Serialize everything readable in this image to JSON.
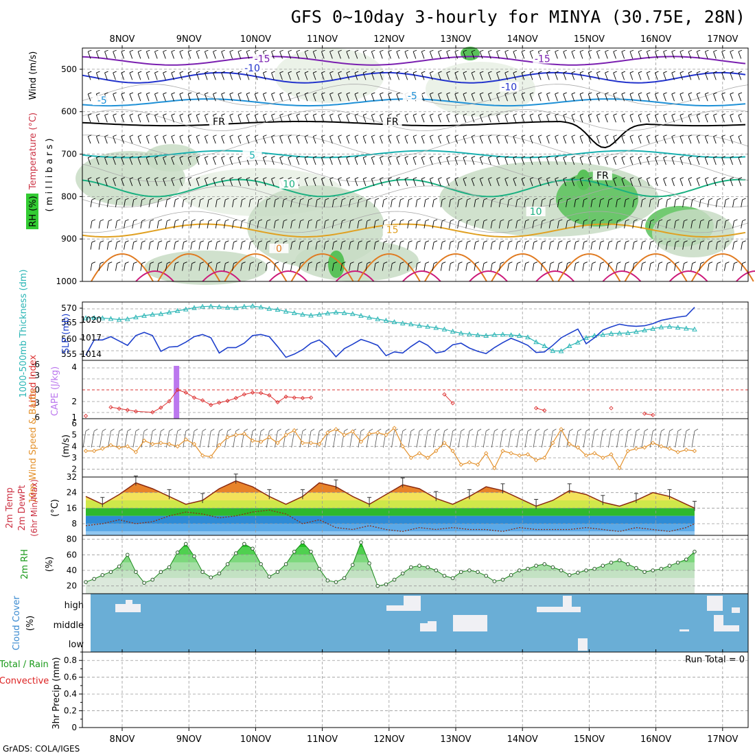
{
  "header": {
    "title": "GFS 0~10day 3-hourly for MINYA (30.75E, 28N)",
    "credit": "GrADS: COLA/IGES"
  },
  "colors": {
    "panel_bg": "#ffffff",
    "cloud_bg": "#6aaed6",
    "grid": "#999999",
    "rh_shade_light": "#e8f0e4",
    "rh_shade_mid": "#c8dcc4",
    "rh_shade_green": "#59c159",
    "thickness": "#29b5b5",
    "slp": "#1d3fcc",
    "lifted": "#dd3333",
    "cape": "#bb77ee",
    "wind10": "#e3902a",
    "tmax": "#8b2a10",
    "dewpt": "#8b2a10",
    "rh2m_line": "#1a8a1a"
  },
  "chart_data": [
    {
      "id": "sounding",
      "type": "heatmap",
      "x_dates": [
        "8NOV",
        "9NOV",
        "10NOV",
        "11NOV",
        "12NOV",
        "13NOV",
        "14NOV",
        "15NOV",
        "16NOV",
        "17NOV"
      ],
      "y_ticks": [
        "500",
        "600",
        "700",
        "800",
        "900",
        "1000"
      ],
      "ylim": [
        1000,
        450
      ],
      "ylabel_parts": [
        "RH (%)",
        "Temperature (°C)",
        "Wind (m/s)"
      ],
      "ylabel_units": "( m i l l i b a r s )",
      "contour_labels": [
        {
          "text": "-15",
          "color": "#7a1fb0",
          "day": 2.1,
          "p": 480
        },
        {
          "text": "-15",
          "color": "#7a1fb0",
          "day": 6.3,
          "p": 480
        },
        {
          "text": "-10",
          "color": "#2233cc",
          "day": 1.95,
          "p": 502
        },
        {
          "text": "-10",
          "color": "#2233cc",
          "day": 5.8,
          "p": 546
        },
        {
          "text": "-5",
          "color": "#1e90d6",
          "day": -0.3,
          "p": 578
        },
        {
          "text": "-5",
          "color": "#1e90d6",
          "day": 4.35,
          "p": 567
        },
        {
          "text": "FR",
          "color": "#000000",
          "day": 1.45,
          "p": 628
        },
        {
          "text": "FR",
          "color": "#000000",
          "day": 4.05,
          "p": 628
        },
        {
          "text": "FR",
          "color": "#000000",
          "day": 7.2,
          "p": 755
        },
        {
          "text": "5",
          "color": "#18b0b0",
          "day": 1.95,
          "p": 707
        },
        {
          "text": "10",
          "color": "#19b080",
          "day": 2.5,
          "p": 775
        },
        {
          "text": "10",
          "color": "#19b080",
          "day": 6.2,
          "p": 840
        },
        {
          "text": "15",
          "color": "#e0a020",
          "day": 4.05,
          "p": 883
        },
        {
          "text": "0",
          "color": "#e07a20",
          "day": 2.35,
          "p": 927
        }
      ]
    },
    {
      "id": "thickness_slp",
      "type": "line",
      "left_label": "1000-500mb Thickness (dm)",
      "right_label": "SLP (mb)",
      "left_ticks": [
        "570",
        "565",
        "560",
        "555"
      ],
      "right_ticks": [
        "1020",
        "1017",
        "1014"
      ],
      "x": [
        0,
        0.125,
        0.25,
        0.375,
        0.5,
        0.625,
        0.75,
        0.875,
        1,
        1.125,
        1.25,
        1.375,
        1.5,
        1.625,
        1.75,
        1.875,
        2,
        2.125,
        2.25,
        2.375,
        2.5,
        2.625,
        2.75,
        2.875,
        3,
        3.125,
        3.25,
        3.375,
        3.5,
        3.625,
        3.75,
        3.875,
        4,
        4.125,
        4.25,
        4.375,
        4.5,
        4.625,
        4.75,
        4.875,
        5,
        5.125,
        5.25,
        5.375,
        5.5,
        5.625,
        5.75,
        5.875,
        6,
        6.125,
        6.25,
        6.375,
        6.5,
        6.625,
        6.75,
        6.875,
        7,
        7.125,
        7.25,
        7.375,
        7.5,
        7.625,
        7.75,
        7.875,
        8,
        8.125,
        8.25,
        8.375,
        8.5,
        8.625,
        8.75,
        8.875,
        9,
        9.125
      ],
      "series": [
        {
          "name": "thickness",
          "values": [
            566.5,
            566.6,
            566.5,
            566.3,
            566.0,
            566.2,
            566.8,
            567.3,
            567.7,
            567.9,
            568.4,
            568.9,
            569.4,
            569.9,
            570.3,
            570.4,
            570.2,
            570.0,
            569.9,
            570.3,
            570.5,
            570.1,
            569.6,
            569.3,
            568.7,
            568.2,
            567.7,
            567.4,
            567.7,
            568.1,
            568.4,
            568.2,
            567.9,
            567.3,
            566.7,
            566.2,
            565.7,
            565.2,
            564.8,
            564.5,
            564.0,
            563.7,
            563.3,
            562.8,
            562.1,
            561.5,
            561.2,
            560.9,
            560.7,
            561.0,
            561.1,
            560.9,
            560.7,
            560.2,
            558.6,
            557.3,
            555.7,
            555.6,
            557.3,
            558.5,
            560.0,
            560.7,
            561.0,
            561.4,
            561.5,
            561.6,
            562.0,
            562.5,
            563.0,
            563.5,
            563.7,
            563.4,
            563.1,
            562.8
          ]
        },
        {
          "name": "slp",
          "values": [
            1014.0,
            1016.8,
            1016.8,
            1017.4,
            1016.6,
            1015.8,
            1017.6,
            1018.2,
            1017.6,
            1014.7,
            1015.5,
            1015.6,
            1016.4,
            1017.4,
            1017.8,
            1017.2,
            1014.4,
            1015.4,
            1015.4,
            1016.2,
            1017.6,
            1017.8,
            1017.4,
            1015.6,
            1013.6,
            1014.2,
            1015.0,
            1016.2,
            1016.8,
            1015.5,
            1013.7,
            1015.2,
            1016.0,
            1016.9,
            1016.4,
            1015.8,
            1013.9,
            1014.6,
            1014.4,
            1015.6,
            1016.6,
            1015.8,
            1014.4,
            1014.7,
            1015.9,
            1016.2,
            1015.3,
            1014.7,
            1014.3,
            1015.4,
            1016.3,
            1017.1,
            1016.5,
            1015.8,
            1014.5,
            1014.6,
            1015.8,
            1017.2,
            1018.0,
            1018.8,
            1016.1,
            1017.2,
            1018.6,
            1019.2,
            1019.7,
            1019.4,
            1019.3,
            1019.4,
            1019.8,
            1020.4,
            1020.7,
            1021.0,
            1021.2,
            1022.8
          ]
        }
      ]
    },
    {
      "id": "lifted_cape",
      "type": "line",
      "left_label": "Lifted Index",
      "right_label": "CAPE (J/kg)",
      "left_ticks": [
        "-6",
        "-3",
        "0",
        "3",
        "6"
      ],
      "right_ticks": [
        "4",
        "2",
        "1"
      ],
      "x": [
        0,
        0.375,
        0.5,
        0.625,
        0.75,
        1.0,
        1.125,
        1.25,
        1.375,
        1.5,
        1.625,
        1.75,
        1.875,
        2,
        2.125,
        2.25,
        2.375,
        2.5,
        2.625,
        2.75,
        2.875,
        3,
        3.125,
        3.25,
        3.375,
        5.375,
        5.5,
        6.75,
        6.875,
        7.875,
        8.375,
        8.5
      ],
      "series": [
        {
          "name": "lifted",
          "values": [
            5.7,
            3.8,
            4.1,
            4.4,
            4.7,
            4.9,
            3.9,
            2.5,
            0.0,
            0.6,
            1.7,
            2.3,
            3.3,
            2.8,
            2.4,
            1.8,
            1.0,
            0.6,
            0.7,
            1.2,
            2.7,
            1.5,
            1.7,
            1.8,
            1.7,
            1.0,
            2.9,
            4.0,
            4.5,
            4.0,
            5.2,
            5.5
          ]
        }
      ],
      "cape_bar": {
        "x": 1.38,
        "value": 4.0
      }
    },
    {
      "id": "wind10",
      "type": "line",
      "left_label": "10m Wind Speed & Barbs",
      "units": "(m/s)",
      "ticks": [
        "6",
        "5",
        "4",
        "3",
        "2"
      ],
      "x": [
        0,
        0.125,
        0.25,
        0.375,
        0.5,
        0.625,
        0.75,
        0.875,
        1,
        1.125,
        1.25,
        1.375,
        1.5,
        1.625,
        1.75,
        1.875,
        2,
        2.125,
        2.25,
        2.375,
        2.5,
        2.625,
        2.75,
        2.875,
        3,
        3.125,
        3.25,
        3.375,
        3.5,
        3.625,
        3.75,
        3.875,
        4,
        4.125,
        4.25,
        4.375,
        4.5,
        4.625,
        4.75,
        4.875,
        5,
        5.125,
        5.25,
        5.375,
        5.5,
        5.625,
        5.75,
        5.875,
        6,
        6.125,
        6.25,
        6.375,
        6.5,
        6.625,
        6.75,
        6.875,
        7,
        7.125,
        7.25,
        7.375,
        7.5,
        7.625,
        7.75,
        7.875,
        8,
        8.125,
        8.25,
        8.375,
        8.5,
        8.625,
        8.75,
        8.875,
        9,
        9.125
      ],
      "series": [
        {
          "name": "wind10",
          "values": [
            3.6,
            3.6,
            3.8,
            4.1,
            3.9,
            4.0,
            3.5,
            4.5,
            4.2,
            4.3,
            4.2,
            4.0,
            4.6,
            4.2,
            3.2,
            3.1,
            4.1,
            4.8,
            5.0,
            5.1,
            4.5,
            4.4,
            4.8,
            4.3,
            5.0,
            5.4,
            4.3,
            4.3,
            4.2,
            5.2,
            5.5,
            5.0,
            5.3,
            4.4,
            5.1,
            5.2,
            5.0,
            5.6,
            4.0,
            3.0,
            3.4,
            3.0,
            3.6,
            4.3,
            3.6,
            2.4,
            2.6,
            2.4,
            3.4,
            2.1,
            3.6,
            3.4,
            3.2,
            3.3,
            2.8,
            3.0,
            4.3,
            5.5,
            4.2,
            3.9,
            3.2,
            3.4,
            3.0,
            3.3,
            2.1,
            3.6,
            3.8,
            3.9,
            4.3,
            4.0,
            3.8,
            3.5,
            3.7,
            3.6
          ]
        }
      ]
    },
    {
      "id": "temp2m",
      "type": "area",
      "left_label": "2m Temp 2m DewPt (6hr Min/Max)",
      "units": "(°C)",
      "ticks": [
        "32",
        "24",
        "16",
        "8"
      ],
      "x": [
        0,
        0.25,
        0.5,
        0.75,
        1,
        1.25,
        1.5,
        1.75,
        2,
        2.25,
        2.5,
        2.75,
        3,
        3.25,
        3.5,
        3.75,
        4,
        4.25,
        4.5,
        4.75,
        5,
        5.25,
        5.5,
        5.75,
        6,
        6.25,
        6.5,
        6.75,
        7,
        7.25,
        7.5,
        7.75,
        8,
        8.25,
        8.5,
        8.75,
        9,
        9.125
      ],
      "series": [
        {
          "name": "temp",
          "values": [
            22,
            18,
            23,
            29,
            26,
            22,
            18,
            20,
            26,
            30,
            27,
            22,
            18,
            22,
            29,
            27,
            22,
            18,
            23,
            28,
            26,
            21,
            18,
            22,
            27,
            25,
            21,
            17,
            20,
            25,
            23,
            19,
            17,
            20,
            24,
            22,
            18,
            16
          ]
        },
        {
          "name": "dewpt",
          "values": [
            7,
            8,
            10,
            8,
            9,
            12,
            14,
            13,
            11,
            12,
            14,
            15,
            13,
            8,
            10,
            6,
            5,
            7,
            5,
            4,
            6,
            5,
            6,
            5,
            5,
            4,
            6,
            5,
            5,
            5,
            6,
            5,
            4,
            6,
            5,
            4,
            6,
            8
          ]
        }
      ]
    },
    {
      "id": "rh2m",
      "type": "area",
      "left_label": "2m RH",
      "units": "(%)",
      "ticks": [
        "80",
        "60",
        "40",
        "20"
      ],
      "x": [
        0,
        0.125,
        0.25,
        0.375,
        0.5,
        0.625,
        0.75,
        0.875,
        1,
        1.125,
        1.25,
        1.375,
        1.5,
        1.625,
        1.75,
        1.875,
        2,
        2.125,
        2.25,
        2.375,
        2.5,
        2.625,
        2.75,
        2.875,
        3,
        3.125,
        3.25,
        3.375,
        3.5,
        3.625,
        3.75,
        3.875,
        4,
        4.125,
        4.25,
        4.375,
        4.5,
        4.625,
        4.75,
        4.875,
        5,
        5.125,
        5.25,
        5.375,
        5.5,
        5.625,
        5.75,
        5.875,
        6,
        6.125,
        6.25,
        6.375,
        6.5,
        6.625,
        6.75,
        6.875,
        7,
        7.125,
        7.25,
        7.375,
        7.5,
        7.625,
        7.75,
        7.875,
        8,
        8.125,
        8.25,
        8.375,
        8.5,
        8.625,
        8.75,
        8.875,
        9,
        9.125
      ],
      "series": [
        {
          "name": "rh",
          "values": [
            25,
            29,
            34,
            38,
            45,
            60,
            38,
            24,
            28,
            38,
            44,
            63,
            74,
            58,
            38,
            31,
            36,
            48,
            62,
            74,
            68,
            48,
            32,
            38,
            48,
            64,
            76,
            64,
            42,
            27,
            25,
            30,
            47,
            76,
            49,
            20,
            22,
            28,
            36,
            44,
            46,
            44,
            40,
            33,
            30,
            38,
            40,
            38,
            33,
            26,
            28,
            34,
            40,
            42,
            46,
            48,
            44,
            40,
            34,
            37,
            40,
            42,
            46,
            50,
            53,
            48,
            43,
            38,
            40,
            42,
            46,
            50,
            54,
            64
          ]
        }
      ]
    },
    {
      "id": "cloud",
      "type": "heatmap",
      "left_label": "Cloud Cover",
      "units": "(%)",
      "rows": [
        "high",
        "middle",
        "low"
      ]
    },
    {
      "id": "precip",
      "type": "bar",
      "left_label_a": "Total / Rain",
      "left_label_b": "Convective",
      "ylabel": "3hr Precip (mm)",
      "ticks": [
        "0.8",
        "0.6",
        "0.4",
        "0.2",
        "0"
      ],
      "run_total": "Run Total = 0",
      "values": []
    }
  ]
}
